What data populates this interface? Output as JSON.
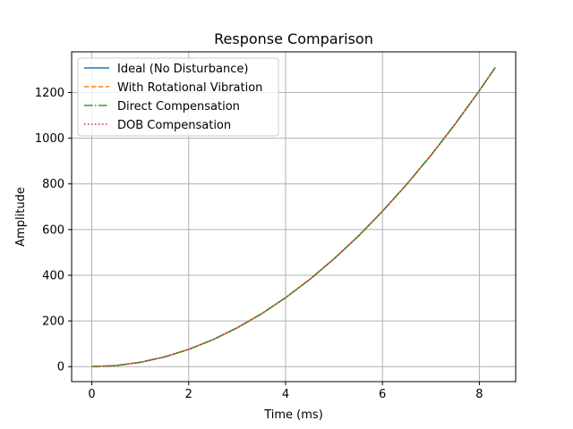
{
  "chart_data": {
    "type": "line",
    "title": "Response Comparison",
    "xlabel": "Time (ms)",
    "ylabel": "Amplitude",
    "xlim": [
      -0.4167,
      8.75
    ],
    "ylim": [
      -65.6,
      1378
    ],
    "xticks": [
      0,
      2,
      4,
      6,
      8
    ],
    "yticks": [
      0,
      200,
      400,
      600,
      800,
      1000,
      1200
    ],
    "grid": true,
    "legend_position": "top-left",
    "x": [
      0,
      0.5,
      1,
      1.5,
      2,
      2.5,
      3,
      3.5,
      4,
      4.5,
      5,
      5.5,
      6,
      6.5,
      7,
      7.5,
      8,
      8.33
    ],
    "series": [
      {
        "name": "Ideal (No Disturbance)",
        "color": "#1f77b4",
        "style": "solid",
        "values": [
          0,
          4.7,
          18.9,
          42.5,
          75.5,
          118,
          170,
          231,
          302,
          382,
          472,
          571,
          680,
          798,
          925,
          1062,
          1208,
          1310
        ]
      },
      {
        "name": "With Rotational Vibration",
        "color": "#ff7f0e",
        "style": "dashed",
        "values": [
          0,
          4.7,
          18.9,
          42.5,
          75.5,
          118,
          170,
          231,
          302,
          382,
          472,
          571,
          680,
          798,
          925,
          1062,
          1208,
          1310
        ]
      },
      {
        "name": "Direct Compensation",
        "color": "#2ca02c",
        "style": "dashdot",
        "values": [
          0,
          4.7,
          18.9,
          42.5,
          75.5,
          118,
          170,
          231,
          302,
          382,
          472,
          571,
          680,
          798,
          925,
          1062,
          1208,
          1310
        ]
      },
      {
        "name": "DOB Compensation",
        "color": "#d62728",
        "style": "dotted",
        "values": [
          0,
          4.7,
          18.9,
          42.5,
          75.5,
          118,
          170,
          231,
          302,
          382,
          472,
          571,
          680,
          798,
          925,
          1062,
          1208,
          1310
        ]
      }
    ]
  }
}
